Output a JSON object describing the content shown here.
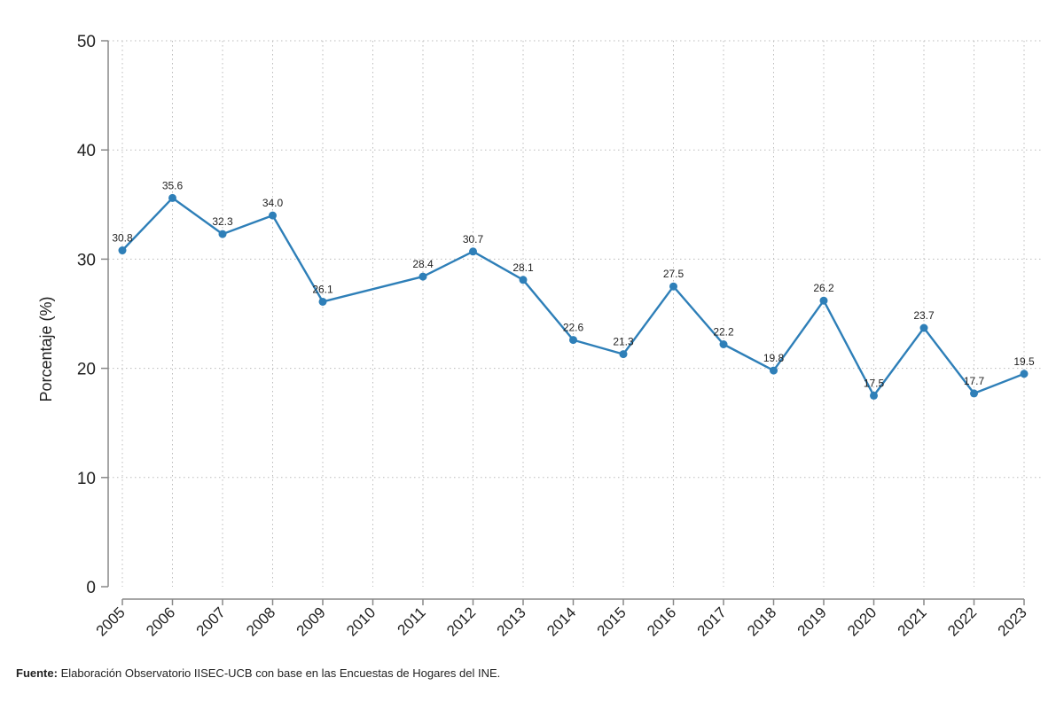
{
  "chart_data": {
    "type": "line",
    "ylabel": "Porcentaje (%)",
    "xlabel": "",
    "ylim": [
      0,
      50
    ],
    "yticks": [
      0,
      10,
      20,
      30,
      40,
      50
    ],
    "categories": [
      "2005",
      "2006",
      "2007",
      "2008",
      "2009",
      "2010",
      "2011",
      "2012",
      "2013",
      "2014",
      "2015",
      "2016",
      "2017",
      "2018",
      "2019",
      "2020",
      "2021",
      "2022",
      "2023"
    ],
    "series": [
      {
        "values": [
          30.8,
          35.6,
          32.3,
          34.0,
          26.1,
          null,
          28.4,
          30.7,
          28.1,
          22.6,
          21.3,
          27.5,
          22.2,
          19.8,
          26.2,
          17.5,
          23.7,
          17.7,
          19.5
        ],
        "labels": [
          "30.8",
          "35.6",
          "32.3",
          "34.0",
          "26.1",
          "",
          "28.4",
          "30.7",
          "28.1",
          "22.6",
          "21.3",
          "27.5",
          "22.2",
          "19.8",
          "26.2",
          "17.5",
          "23.7",
          "17.7",
          "19.5"
        ],
        "color": "#2e7fb8"
      }
    ],
    "grid": true,
    "grid_style": "dotted",
    "axis_color": "#888888",
    "grid_color": "#bbbbbb"
  },
  "source": {
    "prefix": "Fuente:",
    "text": " Elaboración Observatorio IISEC-UCB con base en las Encuestas de Hogares del INE."
  }
}
